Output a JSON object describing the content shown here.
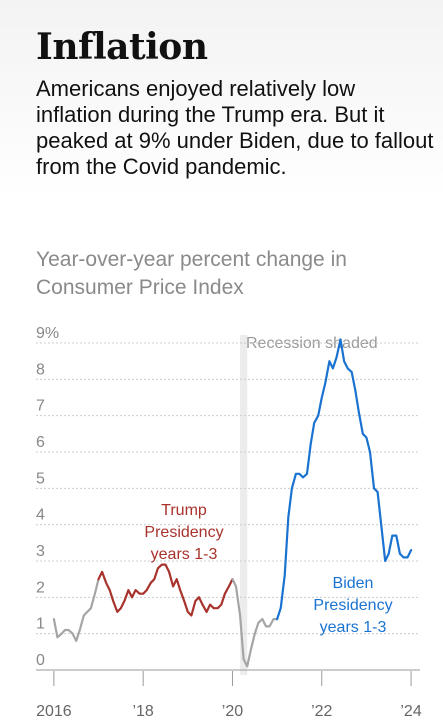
{
  "header": {
    "title": "Inflation",
    "dek": "Americans enjoyed relatively low inflation during the Trump era. But it peaked at 9% under Biden, due to fallout from the Covid pandemic."
  },
  "colors": {
    "neutral": "#a5a5a5",
    "trump": "#a8322c",
    "biden": "#1a73d1",
    "recession": "#ececec",
    "grid": "#cccccc",
    "axis_text": "#888888",
    "tick_text": "#666666"
  },
  "chart_data": {
    "type": "line",
    "title": "Year-over-year percent change in Consumer Price Index",
    "xlabel": "",
    "ylabel": "",
    "ylim": [
      0,
      9
    ],
    "xlim": [
      2015.6,
      2024.2
    ],
    "grid": true,
    "y_ticks": [
      "0",
      "1",
      "2",
      "3",
      "4",
      "5",
      "6",
      "7",
      "8",
      "9%"
    ],
    "x_ticks": [
      {
        "value": 2016,
        "label": "2016"
      },
      {
        "value": 2018,
        "label": "’18"
      },
      {
        "value": 2020,
        "label": "’20"
      },
      {
        "value": 2022,
        "label": "’22"
      },
      {
        "value": 2024,
        "label": "’24"
      }
    ],
    "recession": {
      "start": 2020.17,
      "end": 2020.33,
      "label": "Recession shaded"
    },
    "series": [
      {
        "key": "pre",
        "color_key": "neutral",
        "x": [
          2016.0,
          2016.08,
          2016.17,
          2016.25,
          2016.33,
          2016.42,
          2016.5,
          2016.58,
          2016.67,
          2016.75,
          2016.83,
          2016.92,
          2017.0
        ],
        "values": [
          1.4,
          0.9,
          1.0,
          1.1,
          1.1,
          1.0,
          0.8,
          1.1,
          1.5,
          1.6,
          1.7,
          2.1,
          2.5
        ]
      },
      {
        "key": "trump",
        "name": "Trump Presidency years 1-3",
        "color_key": "trump",
        "x": [
          2017.0,
          2017.08,
          2017.17,
          2017.25,
          2017.33,
          2017.42,
          2017.5,
          2017.58,
          2017.67,
          2017.75,
          2017.83,
          2017.92,
          2018.0,
          2018.08,
          2018.17,
          2018.25,
          2018.33,
          2018.42,
          2018.5,
          2018.58,
          2018.67,
          2018.75,
          2018.83,
          2018.92,
          2019.0,
          2019.08,
          2019.17,
          2019.25,
          2019.33,
          2019.42,
          2019.5,
          2019.58,
          2019.67,
          2019.75,
          2019.83,
          2019.92,
          2020.0
        ],
        "values": [
          2.5,
          2.7,
          2.4,
          2.2,
          1.9,
          1.6,
          1.7,
          1.9,
          2.2,
          2.0,
          2.2,
          2.1,
          2.1,
          2.2,
          2.4,
          2.5,
          2.8,
          2.9,
          2.9,
          2.7,
          2.3,
          2.5,
          2.2,
          1.9,
          1.6,
          1.5,
          1.9,
          2.0,
          1.8,
          1.6,
          1.8,
          1.7,
          1.7,
          1.8,
          2.1,
          2.3,
          2.5
        ]
      },
      {
        "key": "covid",
        "color_key": "neutral",
        "x": [
          2020.0,
          2020.08,
          2020.17,
          2020.25,
          2020.33,
          2020.42,
          2020.5,
          2020.58,
          2020.67,
          2020.75,
          2020.83,
          2020.92,
          2021.0
        ],
        "values": [
          2.5,
          2.3,
          1.5,
          0.3,
          0.1,
          0.6,
          1.0,
          1.3,
          1.4,
          1.2,
          1.2,
          1.4,
          1.4
        ]
      },
      {
        "key": "biden",
        "name": "Biden Presidency years 1-3",
        "color_key": "biden",
        "x": [
          2021.0,
          2021.08,
          2021.17,
          2021.25,
          2021.33,
          2021.42,
          2021.5,
          2021.58,
          2021.67,
          2021.75,
          2021.83,
          2021.92,
          2022.0,
          2022.08,
          2022.17,
          2022.25,
          2022.33,
          2022.42,
          2022.5,
          2022.58,
          2022.67,
          2022.75,
          2022.83,
          2022.92,
          2023.0,
          2023.08,
          2023.17,
          2023.25,
          2023.33,
          2023.42,
          2023.5,
          2023.58,
          2023.67,
          2023.75,
          2023.83,
          2023.92,
          2024.0
        ],
        "values": [
          1.4,
          1.7,
          2.6,
          4.2,
          5.0,
          5.4,
          5.4,
          5.3,
          5.4,
          6.2,
          6.8,
          7.0,
          7.5,
          7.9,
          8.5,
          8.3,
          8.6,
          9.1,
          8.5,
          8.3,
          8.2,
          7.7,
          7.1,
          6.5,
          6.4,
          6.0,
          5.0,
          4.9,
          4.0,
          3.0,
          3.2,
          3.7,
          3.7,
          3.2,
          3.1,
          3.1,
          3.3
        ]
      }
    ],
    "annotations": [
      {
        "series_key": "trump",
        "lines": [
          "Trump",
          "Presidency",
          "years 1-3"
        ]
      },
      {
        "series_key": "biden",
        "lines": [
          "Biden",
          "Presidency",
          "years 1-3"
        ]
      }
    ]
  }
}
